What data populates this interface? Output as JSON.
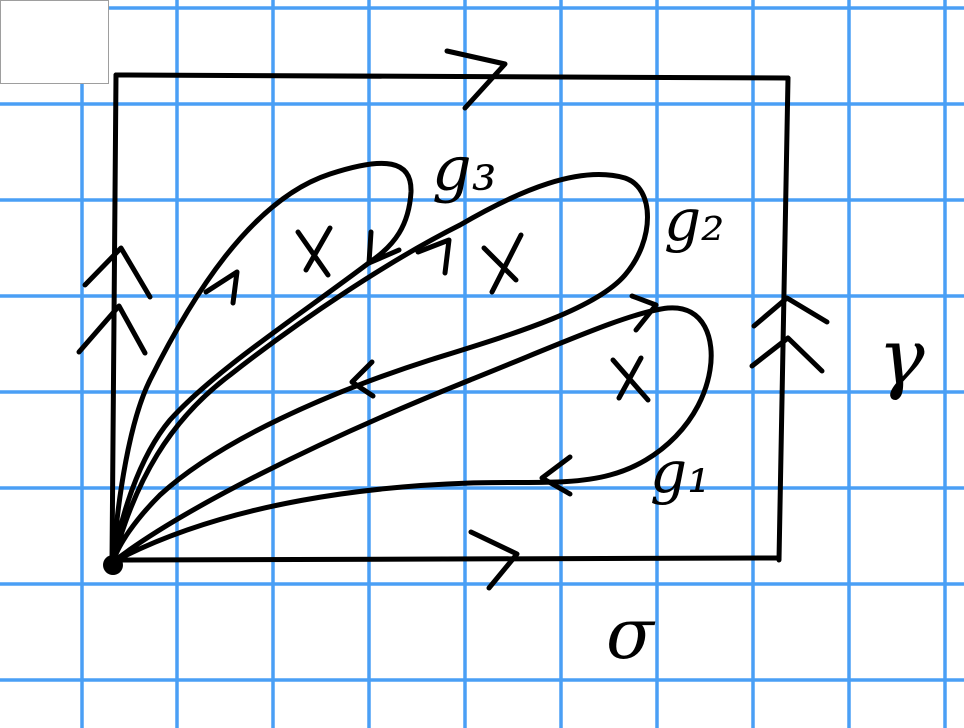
{
  "diagram": {
    "labels": {
      "g1": "g₁",
      "g2": "g₂",
      "g3": "g₃",
      "gamma": "γ",
      "sigma": "σ"
    },
    "punctures": [
      "X",
      "X",
      "X"
    ]
  },
  "colors": {
    "grid": "#4a9ff5",
    "ink": "#000000",
    "paper": "#ffffff"
  }
}
